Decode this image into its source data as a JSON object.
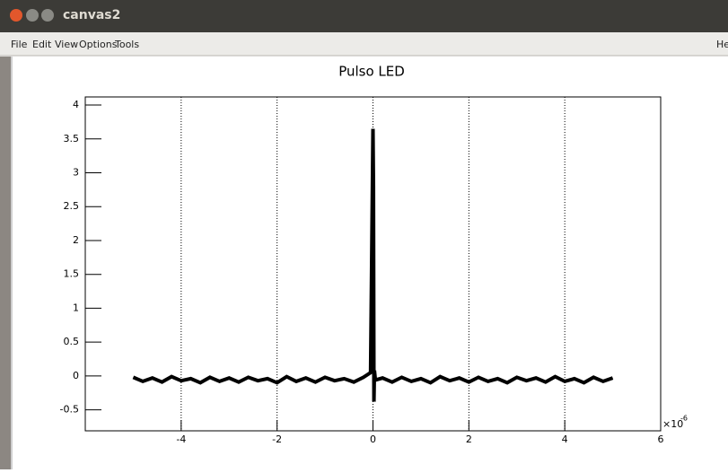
{
  "window": {
    "title": "canvas2"
  },
  "menu": [
    "File",
    "Edit",
    "View",
    "Options",
    "Tools",
    "Help"
  ],
  "chart_data": {
    "type": "line",
    "title": "Pulso LED",
    "x": [
      -5.0,
      -4.8,
      -4.6,
      -4.4,
      -4.2,
      -4.0,
      -3.8,
      -3.6,
      -3.4,
      -3.2,
      -3.0,
      -2.8,
      -2.6,
      -2.4,
      -2.2,
      -2.0,
      -1.8,
      -1.6,
      -1.4,
      -1.2,
      -1.0,
      -0.8,
      -0.6,
      -0.4,
      -0.2,
      -0.05,
      0,
      0.01,
      0.02,
      0.03,
      0.05,
      0.2,
      0.4,
      0.6,
      0.8,
      1.0,
      1.2,
      1.4,
      1.6,
      1.8,
      2.0,
      2.2,
      2.4,
      2.6,
      2.8,
      3.0,
      3.2,
      3.4,
      3.6,
      3.8,
      4.0,
      4.2,
      4.4,
      4.6,
      4.8,
      5.0
    ],
    "series": [
      {
        "color": "#000000",
        "values": [
          -0.02,
          -0.08,
          -0.03,
          -0.09,
          -0.01,
          -0.07,
          -0.04,
          -0.1,
          -0.02,
          -0.08,
          -0.03,
          -0.09,
          -0.02,
          -0.07,
          -0.04,
          -0.1,
          -0.01,
          -0.08,
          -0.03,
          -0.09,
          -0.02,
          -0.07,
          -0.04,
          -0.09,
          -0.02,
          0.05,
          3.65,
          2.8,
          -0.38,
          0.08,
          -0.06,
          -0.03,
          -0.09,
          -0.02,
          -0.08,
          -0.04,
          -0.1,
          -0.01,
          -0.07,
          -0.03,
          -0.09,
          -0.02,
          -0.08,
          -0.04,
          -0.1,
          -0.02,
          -0.07,
          -0.03,
          -0.09,
          -0.01,
          -0.08,
          -0.04,
          -0.1,
          -0.02,
          -0.08,
          -0.03
        ]
      }
    ],
    "xlim": [
      -6,
      6
    ],
    "xticks": [
      -4,
      -2,
      0,
      2,
      4,
      6
    ],
    "ylim": [
      -0.81,
      4.12
    ],
    "yticks": [
      -0.5,
      0,
      0.5,
      1,
      1.5,
      2,
      2.5,
      3,
      3.5,
      4
    ],
    "x_exponent_base": "×10",
    "x_exponent": "-6",
    "grid_x": true
  }
}
